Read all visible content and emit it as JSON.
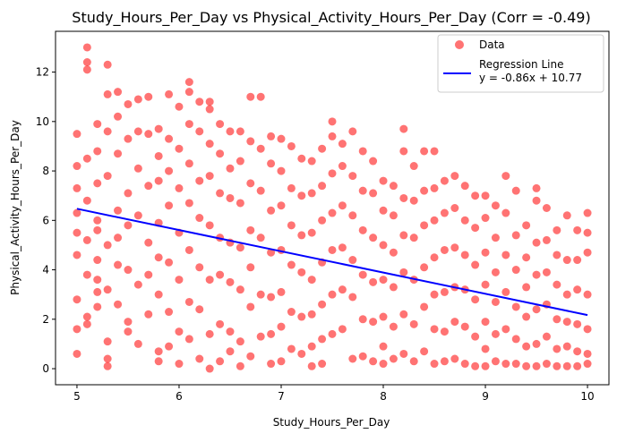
{
  "chart_data": {
    "type": "scatter",
    "title": "Study_Hours_Per_Day vs Physical_Activity_Hours_Per_Day (Corr = -0.49)",
    "xlabel": "Study_Hours_Per_Day",
    "ylabel": "Physical_Activity_Hours_Per_Day",
    "xlim": [
      4.79,
      10.21
    ],
    "ylim": [
      -0.65,
      13.65
    ],
    "xticks": [
      5,
      6,
      7,
      8,
      9,
      10
    ],
    "yticks": [
      0,
      2,
      4,
      6,
      8,
      10,
      12
    ],
    "grid": false,
    "legend_position": "upper right",
    "series": [
      {
        "name": "Data",
        "kind": "scatter",
        "color": "#ff0000",
        "alpha": 0.55,
        "x": [
          5.0,
          5.0,
          5.0,
          5.0,
          5.0,
          5.0,
          5.0,
          5.0,
          5.0,
          5.1,
          5.1,
          5.1,
          5.1,
          5.1,
          5.1,
          5.1,
          5.1,
          5.1,
          5.2,
          5.2,
          5.2,
          5.2,
          5.2,
          5.2,
          5.2,
          5.2,
          5.2,
          5.3,
          5.3,
          5.3,
          5.3,
          5.3,
          5.3,
          5.3,
          5.3,
          5.3,
          5.4,
          5.4,
          5.4,
          5.4,
          5.4,
          5.4,
          5.4,
          5.5,
          5.5,
          5.5,
          5.5,
          5.5,
          5.5,
          5.5,
          5.6,
          5.6,
          5.6,
          5.6,
          5.6,
          5.6,
          5.7,
          5.7,
          5.7,
          5.7,
          5.7,
          5.7,
          5.8,
          5.8,
          5.8,
          5.8,
          5.8,
          5.8,
          5.8,
          5.8,
          5.9,
          5.9,
          5.9,
          5.9,
          5.9,
          5.9,
          5.9,
          6.0,
          6.0,
          6.0,
          6.0,
          6.0,
          6.0,
          6.0,
          6.1,
          6.1,
          6.1,
          6.1,
          6.1,
          6.1,
          6.1,
          6.1,
          6.2,
          6.2,
          6.2,
          6.2,
          6.2,
          6.2,
          6.2,
          6.3,
          6.3,
          6.3,
          6.3,
          6.3,
          6.3,
          6.3,
          6.3,
          6.4,
          6.4,
          6.4,
          6.4,
          6.4,
          6.4,
          6.4,
          6.5,
          6.5,
          6.5,
          6.5,
          6.5,
          6.5,
          6.5,
          6.6,
          6.6,
          6.6,
          6.6,
          6.6,
          6.6,
          6.6,
          6.7,
          6.7,
          6.7,
          6.7,
          6.7,
          6.7,
          6.7,
          6.8,
          6.8,
          6.8,
          6.8,
          6.8,
          6.8,
          6.9,
          6.9,
          6.9,
          6.9,
          6.9,
          6.9,
          6.9,
          7.0,
          7.0,
          7.0,
          7.0,
          7.0,
          7.0,
          7.0,
          7.1,
          7.1,
          7.1,
          7.1,
          7.1,
          7.1,
          7.2,
          7.2,
          7.2,
          7.2,
          7.2,
          7.2,
          7.3,
          7.3,
          7.3,
          7.3,
          7.3,
          7.3,
          7.3,
          7.4,
          7.4,
          7.4,
          7.4,
          7.4,
          7.4,
          7.4,
          7.5,
          7.5,
          7.5,
          7.5,
          7.5,
          7.5,
          7.5,
          7.6,
          7.6,
          7.6,
          7.6,
          7.6,
          7.6,
          7.7,
          7.7,
          7.7,
          7.7,
          7.7,
          7.7,
          7.8,
          7.8,
          7.8,
          7.8,
          7.8,
          7.8,
          7.9,
          7.9,
          7.9,
          7.9,
          7.9,
          7.9,
          8.0,
          8.0,
          8.0,
          8.0,
          8.0,
          8.0,
          8.0,
          8.1,
          8.1,
          8.1,
          8.1,
          8.1,
          8.1,
          8.2,
          8.2,
          8.2,
          8.2,
          8.2,
          8.2,
          8.2,
          8.3,
          8.3,
          8.3,
          8.3,
          8.3,
          8.3,
          8.4,
          8.4,
          8.4,
          8.4,
          8.4,
          8.4,
          8.5,
          8.5,
          8.5,
          8.5,
          8.5,
          8.5,
          8.5,
          8.6,
          8.6,
          8.6,
          8.6,
          8.6,
          8.6,
          8.7,
          8.7,
          8.7,
          8.7,
          8.7,
          8.7,
          8.8,
          8.8,
          8.8,
          8.8,
          8.8,
          8.8,
          8.9,
          8.9,
          8.9,
          8.9,
          8.9,
          8.9,
          9.0,
          9.0,
          9.0,
          9.0,
          9.0,
          9.0,
          9.0,
          9.1,
          9.1,
          9.1,
          9.1,
          9.1,
          9.1,
          9.2,
          9.2,
          9.2,
          9.2,
          9.2,
          9.2,
          9.3,
          9.3,
          9.3,
          9.3,
          9.3,
          9.3,
          9.4,
          9.4,
          9.4,
          9.4,
          9.4,
          9.4,
          9.5,
          9.5,
          9.5,
          9.5,
          9.5,
          9.5,
          9.5,
          9.6,
          9.6,
          9.6,
          9.6,
          9.6,
          9.6,
          9.7,
          9.7,
          9.7,
          9.7,
          9.7,
          9.7,
          9.8,
          9.8,
          9.8,
          9.8,
          9.8,
          9.8,
          9.9,
          9.9,
          9.9,
          9.9,
          9.9,
          9.9,
          10.0,
          10.0,
          10.0,
          10.0,
          10.0,
          10.0,
          10.0
        ],
        "y": [
          9.5,
          8.2,
          7.3,
          6.3,
          5.5,
          4.6,
          2.8,
          1.6,
          0.6,
          13.0,
          12.4,
          12.1,
          8.5,
          6.8,
          5.2,
          3.8,
          2.1,
          1.8,
          9.9,
          7.5,
          6.0,
          4.4,
          3.1,
          2.5,
          8.8,
          5.6,
          3.6,
          12.3,
          11.1,
          9.6,
          7.8,
          5.0,
          3.2,
          1.1,
          0.4,
          0.1,
          11.2,
          10.2,
          8.7,
          6.4,
          4.2,
          2.6,
          5.3,
          10.7,
          9.3,
          7.1,
          5.8,
          4.0,
          1.9,
          1.5,
          10.9,
          9.6,
          8.1,
          6.2,
          3.4,
          1.0,
          11.0,
          9.5,
          7.4,
          5.1,
          3.8,
          2.2,
          9.7,
          8.6,
          7.6,
          5.9,
          4.5,
          3.0,
          0.7,
          0.3,
          11.1,
          9.3,
          8.0,
          6.6,
          4.3,
          2.3,
          0.9,
          10.6,
          8.9,
          7.3,
          5.5,
          3.6,
          1.5,
          0.2,
          11.6,
          11.2,
          9.9,
          8.3,
          6.7,
          4.8,
          2.7,
          1.2,
          10.8,
          9.6,
          7.6,
          6.1,
          4.1,
          2.4,
          0.4,
          10.8,
          10.5,
          9.1,
          7.8,
          5.8,
          3.6,
          1.4,
          0.0,
          9.9,
          8.7,
          7.1,
          5.3,
          3.8,
          1.8,
          0.3,
          9.6,
          8.1,
          6.9,
          5.1,
          3.5,
          1.5,
          0.7,
          9.6,
          8.4,
          6.7,
          4.9,
          3.2,
          1.1,
          0.1,
          11.0,
          9.2,
          7.5,
          5.6,
          4.1,
          2.5,
          0.5,
          11.0,
          8.9,
          7.2,
          5.3,
          3.0,
          1.3,
          9.4,
          8.3,
          6.4,
          4.7,
          2.9,
          1.4,
          0.2,
          9.3,
          8.0,
          6.6,
          4.8,
          3.1,
          1.7,
          0.3,
          9.0,
          7.3,
          5.8,
          4.2,
          2.3,
          0.8,
          8.5,
          7.0,
          5.4,
          3.9,
          2.1,
          0.6,
          8.4,
          7.1,
          5.5,
          3.6,
          2.2,
          0.9,
          0.1,
          8.9,
          7.4,
          6.0,
          4.3,
          2.6,
          1.2,
          0.2,
          10.0,
          9.4,
          7.9,
          6.3,
          4.8,
          3.0,
          1.4,
          9.1,
          8.2,
          6.6,
          4.9,
          3.2,
          1.6,
          9.6,
          7.8,
          6.2,
          4.4,
          2.9,
          0.4,
          8.8,
          7.2,
          5.6,
          3.8,
          2.0,
          0.5,
          8.4,
          7.1,
          5.3,
          3.5,
          1.9,
          0.3,
          7.6,
          6.4,
          5.0,
          3.6,
          2.1,
          0.9,
          0.2,
          7.4,
          6.2,
          4.7,
          3.3,
          1.7,
          0.4,
          9.7,
          8.8,
          6.9,
          5.4,
          3.9,
          2.2,
          0.6,
          8.2,
          6.8,
          5.3,
          3.6,
          1.8,
          0.3,
          8.8,
          7.2,
          5.8,
          4.1,
          2.5,
          0.7,
          7.3,
          6.0,
          4.5,
          3.0,
          1.6,
          8.8,
          0.2,
          7.6,
          6.3,
          4.8,
          3.1,
          1.5,
          0.3,
          7.8,
          6.5,
          4.9,
          3.3,
          1.9,
          0.4,
          7.4,
          6.0,
          4.6,
          3.2,
          1.7,
          0.2,
          7.0,
          5.7,
          4.2,
          2.8,
          1.3,
          0.1,
          7.0,
          6.1,
          4.7,
          3.4,
          1.9,
          0.8,
          0.1,
          6.6,
          5.3,
          3.9,
          2.7,
          1.4,
          0.3,
          7.8,
          6.3,
          4.6,
          3.1,
          1.6,
          0.2,
          7.2,
          5.4,
          4.0,
          2.5,
          1.2,
          0.2,
          5.8,
          4.5,
          3.3,
          2.1,
          0.9,
          0.1,
          7.3,
          6.8,
          5.1,
          3.8,
          2.4,
          1.0,
          0.1,
          6.5,
          5.2,
          3.9,
          2.6,
          1.3,
          0.2,
          5.6,
          4.6,
          3.4,
          2.0,
          0.8,
          0.1,
          6.2,
          4.4,
          3.0,
          1.9,
          0.9,
          0.1,
          5.6,
          4.4,
          3.2,
          1.8,
          0.7,
          0.1,
          6.3,
          5.5,
          4.7,
          3.0,
          1.6,
          0.6,
          0.2
        ]
      },
      {
        "name": "Regression Line",
        "label": "y = -0.86x + 10.77",
        "kind": "line",
        "color": "#0000ff",
        "slope": -0.86,
        "intercept": 10.77,
        "x": [
          5,
          10
        ]
      }
    ]
  }
}
